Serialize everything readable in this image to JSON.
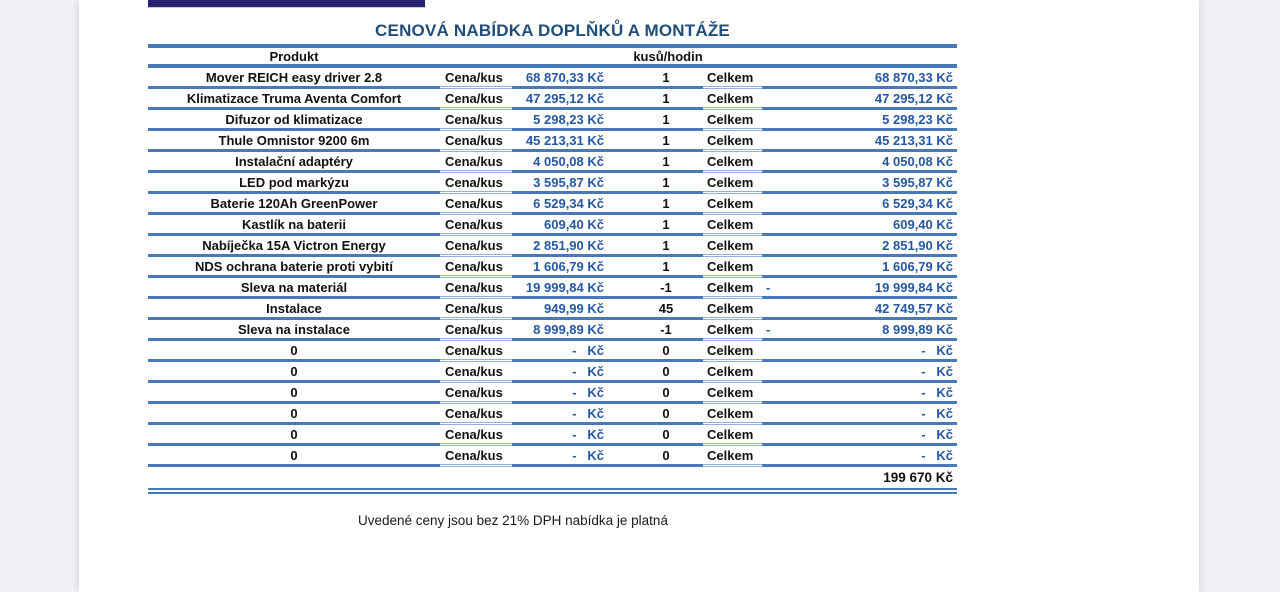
{
  "title": "CENOVÁ NABÍDKA DOPLŇKŮ A MONTÁŽE",
  "table": {
    "header": {
      "product": "Produkt",
      "qty": "kusů/hodin"
    },
    "price_label": "Cena/kus",
    "total_label": "Celkem",
    "rows": [
      {
        "product": "Mover REICH easy driver 2.8",
        "price": "68 870,33 Kč",
        "qty": "1",
        "neg": "",
        "total": "68 870,33 Kč"
      },
      {
        "product": "Klimatizace Truma Aventa Comfort",
        "price": "47 295,12 Kč",
        "qty": "1",
        "neg": "",
        "total": "47 295,12 Kč"
      },
      {
        "product": "Difuzor od klimatizace",
        "price": "5 298,23 Kč",
        "qty": "1",
        "neg": "",
        "total": "5 298,23 Kč"
      },
      {
        "product": "Thule Omnistor 9200 6m",
        "price": "45 213,31 Kč",
        "qty": "1",
        "neg": "",
        "total": "45 213,31 Kč"
      },
      {
        "product": "Instalační adaptéry",
        "price": "4 050,08 Kč",
        "qty": "1",
        "neg": "",
        "total": "4 050,08 Kč"
      },
      {
        "product": "LED pod markýzu",
        "price": "3 595,87 Kč",
        "qty": "1",
        "neg": "",
        "total": "3 595,87 Kč"
      },
      {
        "product": "Baterie 120Ah GreenPower",
        "price": "6 529,34 Kč",
        "qty": "1",
        "neg": "",
        "total": "6 529,34 Kč"
      },
      {
        "product": "Kastlík na baterii",
        "price": "609,40 Kč",
        "qty": "1",
        "neg": "",
        "total": "609,40 Kč"
      },
      {
        "product": "Nabíječka 15A Victron Energy",
        "price": "2 851,90 Kč",
        "qty": "1",
        "neg": "",
        "total": "2 851,90 Kč"
      },
      {
        "product": "NDS ochrana baterie proti vybití",
        "price": "1 606,79 Kč",
        "qty": "1",
        "neg": "",
        "total": "1 606,79 Kč"
      },
      {
        "product": "Sleva na materiál",
        "price": "19 999,84 Kč",
        "qty": "-1",
        "neg": "-",
        "total": "19 999,84 Kč"
      },
      {
        "product": "Instalace",
        "price": "949,99 Kč",
        "qty": "45",
        "neg": "",
        "total": "42 749,57 Kč"
      },
      {
        "product": "Sleva na instalace",
        "price": "8 999,89 Kč",
        "qty": "-1",
        "neg": "-",
        "total": "8 999,89 Kč"
      },
      {
        "product": "0",
        "price": "-   Kč",
        "qty": "0",
        "neg": "",
        "total": "-   Kč"
      },
      {
        "product": "0",
        "price": "-   Kč",
        "qty": "0",
        "neg": "",
        "total": "-   Kč"
      },
      {
        "product": "0",
        "price": "-   Kč",
        "qty": "0",
        "neg": "",
        "total": "-   Kč"
      },
      {
        "product": "0",
        "price": "-   Kč",
        "qty": "0",
        "neg": "",
        "total": "-   Kč"
      },
      {
        "product": "0",
        "price": "-   Kč",
        "qty": "0",
        "neg": "",
        "total": "-   Kč"
      },
      {
        "product": "0",
        "price": "-   Kč",
        "qty": "0",
        "neg": "",
        "total": "-   Kč"
      }
    ],
    "grand_total": "199 670 Kč"
  },
  "footer": {
    "note": "Uvedené ceny jsou bez 21% DPH nabídka je platná"
  },
  "colors": {
    "row_line": "#4a79ba",
    "double_line": "#8fb2dd",
    "price_text": "#2457a5",
    "title_text": "#1f4e79",
    "top_bar": "#2b2171"
  }
}
